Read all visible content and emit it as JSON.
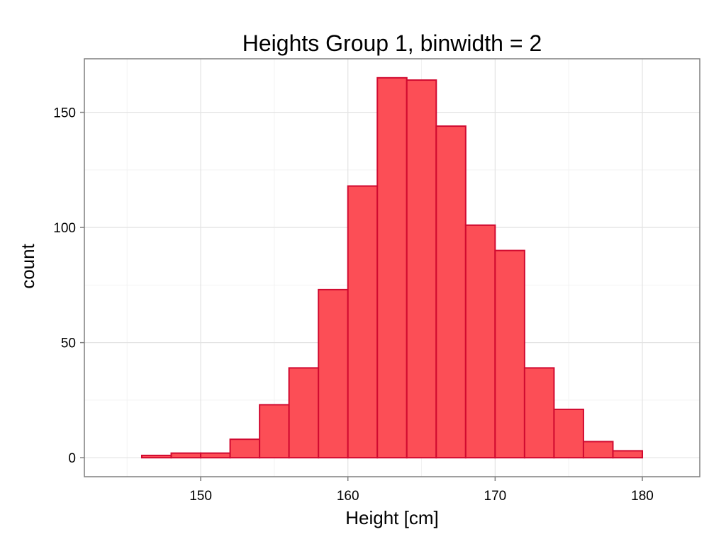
{
  "chart_data": {
    "type": "bar",
    "title": "Heights Group 1, binwidth = 2",
    "xlabel": "Height [cm]",
    "ylabel": "count",
    "binwidth": 2,
    "bins": [
      {
        "x0": 144,
        "x1": 146,
        "count": 0
      },
      {
        "x0": 146,
        "x1": 148,
        "count": 1
      },
      {
        "x0": 148,
        "x1": 150,
        "count": 2
      },
      {
        "x0": 150,
        "x1": 152,
        "count": 2
      },
      {
        "x0": 152,
        "x1": 154,
        "count": 8
      },
      {
        "x0": 154,
        "x1": 156,
        "count": 23
      },
      {
        "x0": 156,
        "x1": 158,
        "count": 39
      },
      {
        "x0": 158,
        "x1": 160,
        "count": 73
      },
      {
        "x0": 160,
        "x1": 162,
        "count": 118
      },
      {
        "x0": 162,
        "x1": 164,
        "count": 165
      },
      {
        "x0": 164,
        "x1": 166,
        "count": 164
      },
      {
        "x0": 166,
        "x1": 168,
        "count": 144
      },
      {
        "x0": 168,
        "x1": 170,
        "count": 101
      },
      {
        "x0": 170,
        "x1": 172,
        "count": 90
      },
      {
        "x0": 172,
        "x1": 174,
        "count": 39
      },
      {
        "x0": 174,
        "x1": 176,
        "count": 21
      },
      {
        "x0": 176,
        "x1": 178,
        "count": 7
      },
      {
        "x0": 178,
        "x1": 180,
        "count": 3
      },
      {
        "x0": 180,
        "x1": 182,
        "count": 0
      }
    ],
    "xlim": [
      142.1,
      183.9
    ],
    "ylim": [
      -8.25,
      173.25
    ],
    "xticks": [
      150,
      160,
      170,
      180
    ],
    "yticks": [
      0,
      50,
      100,
      150
    ],
    "grid": true,
    "colors": {
      "bar_fill": "#FC4E56",
      "bar_stroke": "#D10A30",
      "grid_major": "#E3E3E3",
      "grid_minor": "#F2F2F2",
      "panel_border": "#7F7F7F"
    }
  }
}
